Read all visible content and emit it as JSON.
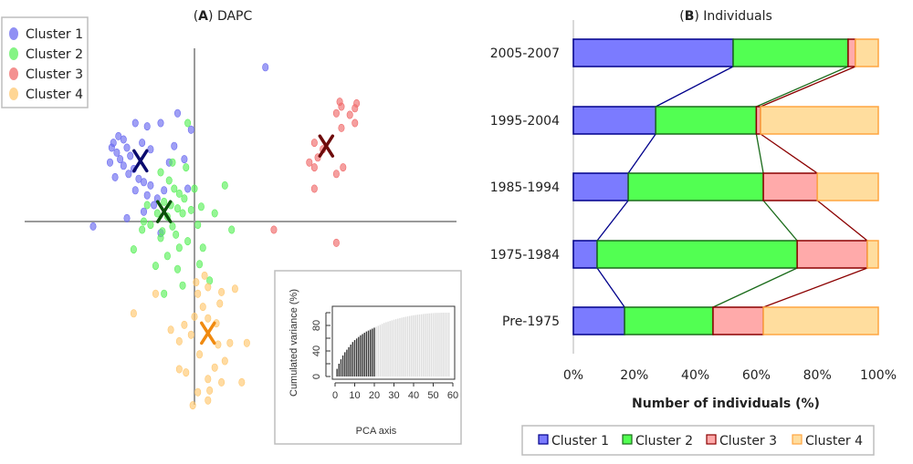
{
  "chart_data": [
    {
      "type": "scatter",
      "title_prefix": "A",
      "title": "DAPC",
      "legend": {
        "placement": "top-left",
        "entries": [
          "Cluster 1",
          "Cluster 2",
          "Cluster 3",
          "Cluster 4"
        ]
      },
      "colors": {
        "Cluster 1": "#6b6bf0",
        "Cluster 2": "#5cf05c",
        "Cluster 3": "#f06b6b",
        "Cluster 4": "#ffc870"
      },
      "centroid_colors": {
        "Cluster 1": "#0a0a6e",
        "Cluster 2": "#0a500a",
        "Cluster 3": "#6e0a0a",
        "Cluster 4": "#f08a10"
      },
      "xlim": [
        -10,
        12
      ],
      "ylim": [
        -12,
        12
      ],
      "series": [
        {
          "name": "Cluster 1",
          "centroid": [
            -3.2,
            3.7
          ],
          "points": [
            [
              -4.5,
              5.2
            ],
            [
              -4.2,
              5.0
            ],
            [
              -4.8,
              4.8
            ],
            [
              -4.0,
              4.5
            ],
            [
              -4.6,
              4.2
            ],
            [
              -3.8,
              4.0
            ],
            [
              -4.4,
              3.8
            ],
            [
              -5.0,
              3.6
            ],
            [
              -4.2,
              3.4
            ],
            [
              -3.6,
              3.2
            ],
            [
              -3.9,
              2.9
            ],
            [
              -4.7,
              2.7
            ],
            [
              -3.3,
              2.6
            ],
            [
              -3.0,
              2.4
            ],
            [
              -2.6,
              2.2
            ],
            [
              -3.5,
              1.9
            ],
            [
              -2.8,
              1.6
            ],
            [
              -2.2,
              1.4
            ],
            [
              -1.8,
              1.9
            ],
            [
              -2.4,
              1.0
            ],
            [
              -3.0,
              0.6
            ],
            [
              -4.0,
              0.2
            ],
            [
              -6.0,
              -0.3
            ],
            [
              -2.0,
              -0.7
            ],
            [
              -1.5,
              3.6
            ],
            [
              -1.2,
              4.6
            ],
            [
              -0.6,
              3.8
            ],
            [
              -2.0,
              6.0
            ],
            [
              -0.2,
              5.6
            ],
            [
              -2.8,
              5.8
            ],
            [
              -1.0,
              6.6
            ],
            [
              -3.5,
              6.0
            ],
            [
              -4.9,
              4.5
            ],
            [
              4.2,
              9.4
            ],
            [
              -0.4,
              2.0
            ],
            [
              -2.6,
              4.4
            ],
            [
              -3.1,
              4.8
            ]
          ]
        },
        {
          "name": "Cluster 2",
          "centroid": [
            -1.8,
            0.6
          ],
          "points": [
            [
              -1.5,
              2.5
            ],
            [
              -1.2,
              2.0
            ],
            [
              -0.9,
              1.7
            ],
            [
              -0.6,
              1.4
            ],
            [
              -1.8,
              1.2
            ],
            [
              -1.4,
              1.0
            ],
            [
              -1.0,
              0.8
            ],
            [
              -0.7,
              0.5
            ],
            [
              -2.2,
              0.5
            ],
            [
              -1.6,
              0.3
            ],
            [
              -2.6,
              -0.2
            ],
            [
              -3.1,
              -0.5
            ],
            [
              -1.3,
              -0.3
            ],
            [
              -0.2,
              0.7
            ],
            [
              0.4,
              0.9
            ],
            [
              1.2,
              0.5
            ],
            [
              -0.4,
              -1.2
            ],
            [
              -0.9,
              -1.6
            ],
            [
              -1.6,
              -2.1
            ],
            [
              -2.3,
              -2.7
            ],
            [
              -1.0,
              -2.9
            ],
            [
              0.3,
              -2.6
            ],
            [
              -3.6,
              -1.7
            ],
            [
              -0.7,
              -3.9
            ],
            [
              -1.8,
              -4.4
            ],
            [
              0.9,
              -3.6
            ],
            [
              -2.0,
              -1.0
            ],
            [
              -1.1,
              -0.8
            ],
            [
              0.0,
              2.0
            ],
            [
              1.8,
              2.2
            ],
            [
              2.2,
              -0.5
            ],
            [
              -2.8,
              1.0
            ],
            [
              -0.4,
              6.0
            ],
            [
              -2.0,
              3.0
            ],
            [
              -1.3,
              3.6
            ],
            [
              -0.5,
              3.3
            ],
            [
              0.5,
              -1.6
            ],
            [
              -3.0,
              0.0
            ],
            [
              -1.9,
              -0.6
            ],
            [
              0.2,
              -0.2
            ]
          ]
        },
        {
          "name": "Cluster 3",
          "centroid": [
            7.8,
            4.6
          ],
          "points": [
            [
              8.6,
              7.3
            ],
            [
              8.7,
              7.0
            ],
            [
              9.6,
              7.2
            ],
            [
              9.5,
              6.9
            ],
            [
              8.4,
              6.6
            ],
            [
              9.2,
              6.5
            ],
            [
              9.5,
              6.0
            ],
            [
              8.7,
              5.7
            ],
            [
              7.1,
              4.8
            ],
            [
              7.6,
              4.4
            ],
            [
              7.3,
              3.9
            ],
            [
              6.8,
              3.6
            ],
            [
              7.1,
              3.3
            ],
            [
              8.4,
              2.9
            ],
            [
              8.8,
              3.3
            ],
            [
              7.1,
              2.0
            ],
            [
              4.7,
              -0.5
            ],
            [
              8.4,
              -1.3
            ]
          ]
        },
        {
          "name": "Cluster 4",
          "centroid": [
            0.8,
            -6.8
          ],
          "points": [
            [
              0.2,
              -4.4
            ],
            [
              0.8,
              -4.0
            ],
            [
              1.6,
              -4.3
            ],
            [
              1.5,
              -5.0
            ],
            [
              0.5,
              -5.2
            ],
            [
              0.0,
              -5.8
            ],
            [
              0.8,
              -5.9
            ],
            [
              1.3,
              -6.2
            ],
            [
              -0.6,
              -6.3
            ],
            [
              -0.2,
              -6.9
            ],
            [
              -0.9,
              -7.3
            ],
            [
              1.4,
              -7.5
            ],
            [
              2.1,
              -7.4
            ],
            [
              3.1,
              -7.4
            ],
            [
              0.3,
              -8.1
            ],
            [
              1.8,
              -8.5
            ],
            [
              1.2,
              -8.9
            ],
            [
              -0.5,
              -9.2
            ],
            [
              -0.9,
              -9.0
            ],
            [
              0.8,
              -9.6
            ],
            [
              1.6,
              -9.8
            ],
            [
              2.8,
              -9.8
            ],
            [
              0.2,
              -10.4
            ],
            [
              0.8,
              -10.9
            ],
            [
              -0.1,
              -11.2
            ],
            [
              0.9,
              -10.3
            ],
            [
              -3.6,
              -5.6
            ],
            [
              -2.3,
              -4.4
            ],
            [
              0.6,
              -3.3
            ],
            [
              2.4,
              -4.1
            ],
            [
              0.1,
              -3.7
            ],
            [
              -1.4,
              -6.6
            ]
          ]
        }
      ],
      "inset": {
        "type": "bar",
        "xlabel": "PCA axis",
        "ylabel": "Cumulated variance (%)",
        "xticks": [
          "0",
          "10",
          "20",
          "30",
          "40",
          "50",
          "60"
        ],
        "yticks": [
          "0",
          "40",
          "80"
        ],
        "xlim": [
          0,
          60
        ],
        "ylim": [
          0,
          100
        ],
        "retained_axes": 20,
        "retained_color": "#333333",
        "other_color": "#dddddd",
        "values": [
          12,
          20,
          27,
          33,
          38,
          42,
          46,
          50,
          54,
          57,
          59.5,
          62,
          64.5,
          66.5,
          68.5,
          70.5,
          72,
          73.5,
          75,
          76.5,
          78,
          79.5,
          81,
          82.5,
          84,
          85,
          86,
          87,
          88,
          89,
          89.8,
          90.6,
          91.4,
          92.2,
          93,
          93.6,
          94.2,
          94.8,
          95.4,
          96,
          96.4,
          96.8,
          97.2,
          97.6,
          98,
          98.3,
          98.6,
          98.9,
          99.2,
          99.4,
          99.6,
          99.7,
          99.8,
          99.9,
          100,
          100,
          100,
          100
        ]
      }
    },
    {
      "type": "bar",
      "orientation": "horizontal",
      "stacked": "percent",
      "title_prefix": "B",
      "title": "Individuals",
      "xlabel": "Number of individuals (%)",
      "xticks": [
        "0%",
        "20%",
        "40%",
        "60%",
        "80%",
        "100%"
      ],
      "xlim": [
        0,
        100
      ],
      "categories": [
        "2005-2007",
        "1995-2004",
        "1985-1994",
        "1975-1984",
        "Pre-1975"
      ],
      "series": [
        {
          "name": "Cluster 1",
          "fill": "#7b7bff",
          "stroke": "#00008b",
          "values": [
            52.4,
            27.0,
            18.0,
            7.8,
            16.8
          ]
        },
        {
          "name": "Cluster 2",
          "fill": "#52ff52",
          "stroke": "#1a6b1a",
          "values": [
            37.7,
            33.0,
            44.3,
            65.6,
            29.0
          ]
        },
        {
          "name": "Cluster 3",
          "fill": "#ffaaaa",
          "stroke": "#8b0000",
          "values": [
            2.4,
            1.4,
            17.7,
            23.0,
            16.5
          ]
        },
        {
          "name": "Cluster 4",
          "fill": "#ffdd9e",
          "stroke": "#ffa540",
          "values": [
            7.5,
            38.6,
            20.0,
            3.6,
            37.7
          ]
        }
      ],
      "legend": {
        "placement": "bottom",
        "entries": [
          "Cluster 1",
          "Cluster 2",
          "Cluster 3",
          "Cluster 4"
        ]
      }
    }
  ]
}
